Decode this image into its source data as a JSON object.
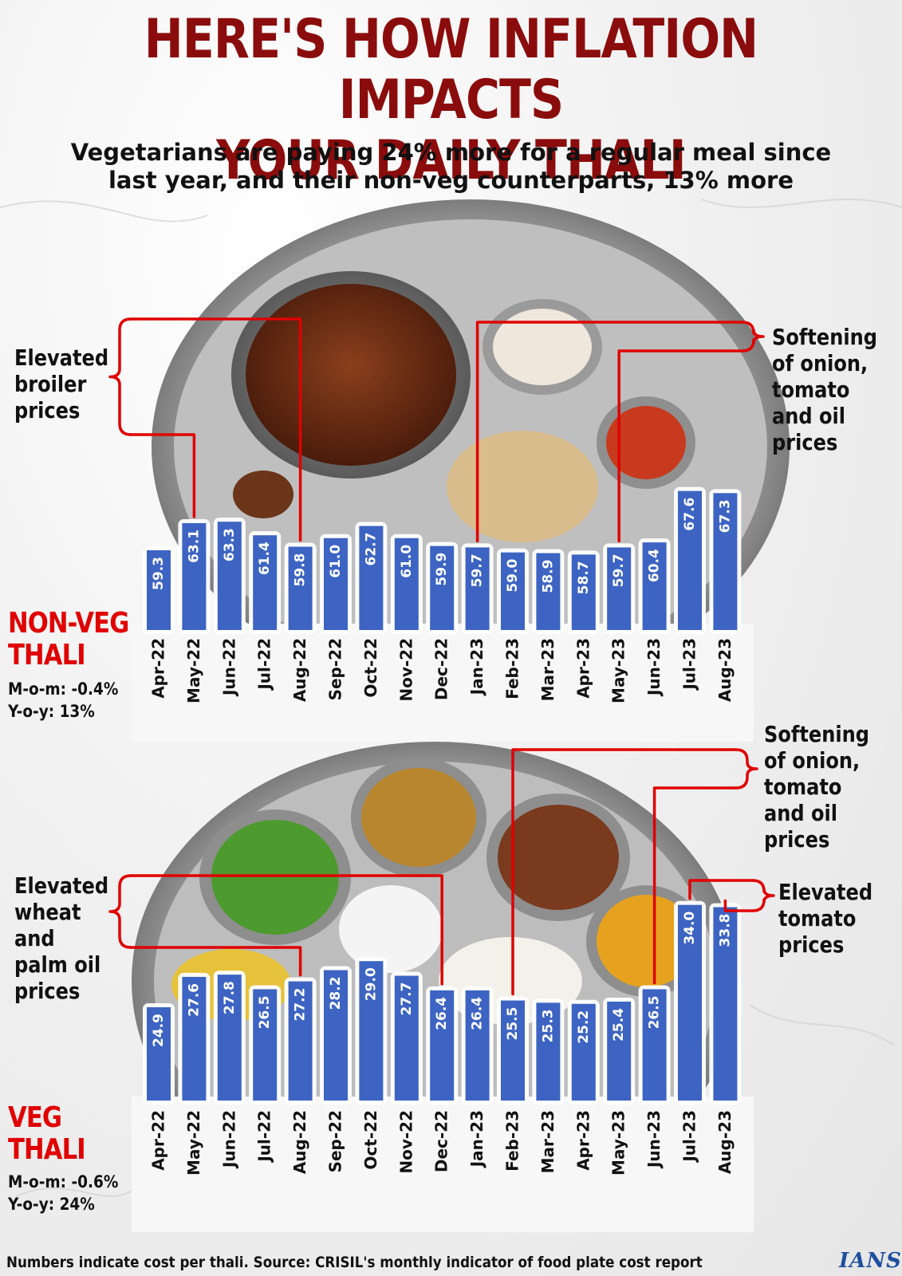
{
  "title_line1": "HERE'S HOW INFLATION IMPACTS",
  "title_line2": "YOUR DAILY THALI",
  "subtitle_line1": "Vegetarians are paying 24% more for a regular meal since",
  "subtitle_line2": "last year, and their non-veg counterparts, 13% more",
  "source_note": "Numbers indicate cost per thali. Source: CRISIL's monthly indicator of food plate cost report",
  "logo_text": "IANS",
  "colors": {
    "bar": "#3d64c2",
    "title": "#8b0c0c",
    "label_red": "#e00000",
    "annotation_line": "#e00000"
  },
  "chart_data": [
    {
      "type": "bar",
      "name": "NON-VEG THALI",
      "name_line1": "NON-VEG",
      "name_line2": "THALI",
      "mom": "M-o-m: -0.4%",
      "yoy": "Y-o-y: 13%",
      "categories": [
        "Apr-22",
        "May-22",
        "Jun-22",
        "Jul-22",
        "Aug-22",
        "Sep-22",
        "Oct-22",
        "Nov-22",
        "Dec-22",
        "Jan-23",
        "Feb-23",
        "Mar-23",
        "Apr-23",
        "May-23",
        "Jun-23",
        "Jul-23",
        "Aug-23"
      ],
      "values": [
        59.3,
        63.1,
        63.3,
        61.4,
        59.8,
        61.0,
        62.7,
        61.0,
        59.9,
        59.7,
        59.0,
        58.9,
        58.7,
        59.7,
        60.4,
        67.6,
        67.3
      ],
      "value_labels": [
        "59.3",
        "63.1",
        "63.3",
        "61.4",
        "59.8",
        "61.0",
        "62.7",
        "61.0",
        "59.9",
        "59.7",
        "59.0",
        "58.9",
        "58.7",
        "59.7",
        "60.4",
        "67.6",
        "67.3"
      ],
      "annotations": [
        {
          "text_lines": [
            "Elevated",
            "broiler",
            "prices"
          ],
          "points_to": [
            "May-22",
            "Aug-22"
          ]
        },
        {
          "text_lines": [
            "Softening",
            "of onion,",
            "tomato",
            "and oil",
            "prices"
          ],
          "points_to": [
            "Jan-23",
            "May-23"
          ]
        }
      ]
    },
    {
      "type": "bar",
      "name": "VEG THALI",
      "name_line1": "VEG",
      "name_line2": "THALI",
      "mom": "M-o-m: -0.6%",
      "yoy": "Y-o-y: 24%",
      "categories": [
        "Apr-22",
        "May-22",
        "Jun-22",
        "Jul-22",
        "Aug-22",
        "Sep-22",
        "Oct-22",
        "Nov-22",
        "Dec-22",
        "Jan-23",
        "Feb-23",
        "Mar-23",
        "Apr-23",
        "May-23",
        "Jun-23",
        "Jul-23",
        "Aug-23"
      ],
      "values": [
        24.9,
        27.6,
        27.8,
        26.5,
        27.2,
        28.2,
        29.0,
        27.7,
        26.4,
        26.4,
        25.5,
        25.3,
        25.2,
        25.4,
        26.5,
        34.0,
        33.8
      ],
      "value_labels": [
        "24.9",
        "27.6",
        "27.8",
        "26.5",
        "27.2",
        "28.2",
        "29.0",
        "27.7",
        "26.4",
        "26.4",
        "25.5",
        "25.3",
        "25.2",
        "25.4",
        "26.5",
        "34.0",
        "33.8"
      ],
      "annotations": [
        {
          "text_lines": [
            "Elevated",
            "wheat",
            "and",
            "palm oil",
            "prices"
          ],
          "points_to": [
            "Aug-22",
            "Dec-22"
          ]
        },
        {
          "text_lines": [
            "Softening",
            "of onion,",
            "tomato",
            "and oil",
            "prices"
          ],
          "points_to": [
            "Feb-23",
            "Jun-23"
          ]
        },
        {
          "text_lines": [
            "Elevated",
            "tomato",
            "prices"
          ],
          "points_to": [
            "Jul-23",
            "Aug-23"
          ]
        }
      ]
    }
  ]
}
